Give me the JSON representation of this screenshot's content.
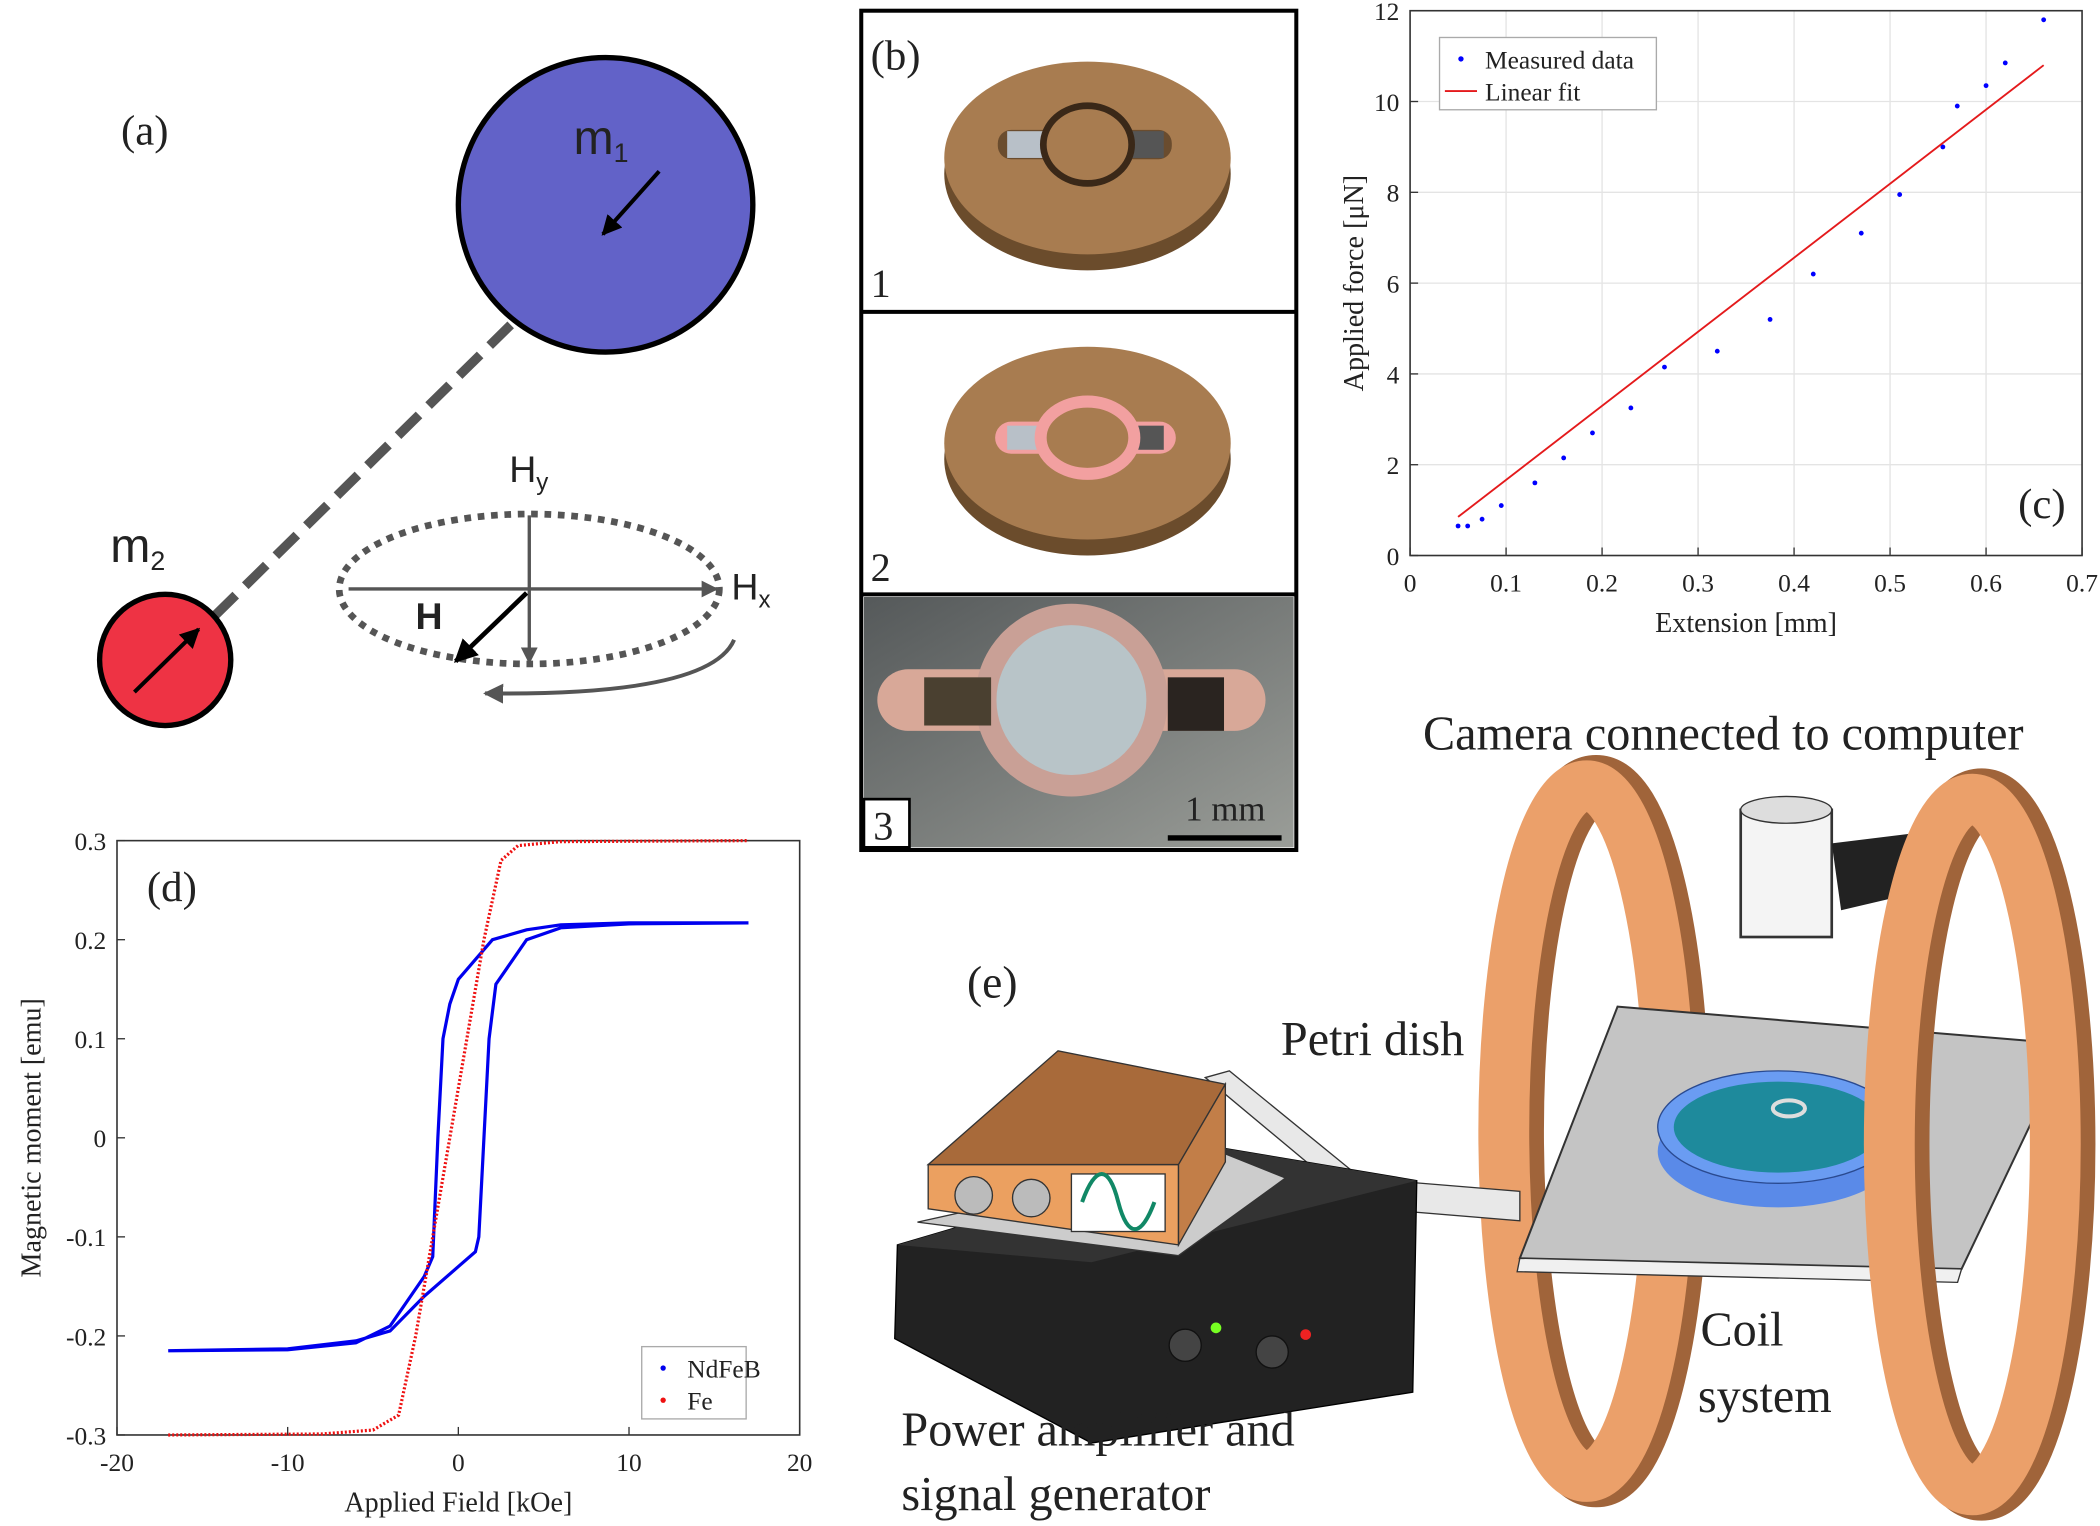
{
  "panel_a": {
    "label": "(a)",
    "m1": "m",
    "m1_sub": "1",
    "m2": "m",
    "m2_sub": "2",
    "hy": "H",
    "hy_sub": "y",
    "hx": "H",
    "hx_sub": "x",
    "h": "H"
  },
  "panel_b": {
    "label": "(b)",
    "steps": [
      "1",
      "2",
      "3"
    ],
    "scale": "1 mm"
  },
  "panel_e": {
    "label": "(e)",
    "camera": "Camera connected to computer",
    "dish": "Petri dish",
    "coil": [
      "Coil",
      "system"
    ],
    "amplifier": [
      "Power amplifier and",
      "signal generator"
    ]
  },
  "chart_data": [
    {
      "type": "scatter",
      "annotation": "(c)",
      "x_label": "Extension [mm]",
      "y_label": "Applied force [μN]",
      "xlim": [
        0,
        0.7
      ],
      "xticks": [
        0,
        0.1,
        0.2,
        0.3,
        0.4,
        0.5,
        0.6,
        0.7
      ],
      "ylim": [
        0,
        12
      ],
      "yticks": [
        0,
        2,
        4,
        6,
        8,
        10,
        12
      ],
      "grid": true,
      "legend": "top-left",
      "series": [
        {
          "name": "Measured data",
          "mode": "markers",
          "color": "#0000ff",
          "x": [
            0.05,
            0.06,
            0.075,
            0.095,
            0.13,
            0.16,
            0.19,
            0.23,
            0.265,
            0.32,
            0.375,
            0.42,
            0.47,
            0.51,
            0.555,
            0.57,
            0.6,
            0.62,
            0.66
          ],
          "values": [
            0.65,
            0.65,
            0.8,
            1.1,
            1.6,
            2.15,
            2.7,
            3.25,
            4.15,
            4.5,
            5.2,
            6.2,
            7.1,
            7.95,
            9.0,
            9.9,
            10.35,
            10.85,
            11.8
          ]
        },
        {
          "name": "Linear fit",
          "mode": "line",
          "color": "#e41a1c",
          "x": [
            0.05,
            0.66
          ],
          "values": [
            0.85,
            10.8
          ]
        }
      ]
    },
    {
      "type": "line",
      "annotation": "(d)",
      "x_label": "Applied Field [kOe]",
      "y_label": "Magnetic moment [emu]",
      "xlim": [
        -20,
        20
      ],
      "xticks": [
        -20,
        -10,
        0,
        10,
        20
      ],
      "ylim": [
        -0.3,
        0.3
      ],
      "yticks": [
        -0.3,
        -0.2,
        -0.1,
        0,
        0.1,
        0.2,
        0.3
      ],
      "grid": false,
      "legend": "bottom-right",
      "series": [
        {
          "name": "NdFeB",
          "color": "#0000ee",
          "x": [
            17,
            10,
            6,
            4,
            2,
            0,
            -0.5,
            -0.9,
            -1.2,
            -1.5,
            -2,
            -4,
            -6,
            -10,
            -17,
            -10,
            -6,
            -4,
            -2,
            0,
            1,
            1.2,
            1.5,
            1.8,
            2.2,
            4,
            6,
            10,
            17
          ],
          "values": [
            0.217,
            0.217,
            0.215,
            0.21,
            0.2,
            0.16,
            0.135,
            0.1,
            0,
            -0.12,
            -0.14,
            -0.19,
            -0.207,
            -0.214,
            -0.215,
            -0.213,
            -0.205,
            -0.195,
            -0.16,
            -0.13,
            -0.115,
            -0.1,
            0,
            0.1,
            0.155,
            0.2,
            0.212,
            0.216,
            0.217
          ]
        },
        {
          "name": "Fe",
          "color": "#ee1111",
          "x": [
            -17,
            -8,
            -5,
            -3.5,
            -2.5,
            -1.5,
            -0.5,
            0.5,
            1.5,
            2.5,
            3.5,
            6,
            17
          ],
          "values": [
            -0.3,
            -0.299,
            -0.295,
            -0.28,
            -0.2,
            -0.1,
            0,
            0.1,
            0.2,
            0.28,
            0.295,
            0.299,
            0.3
          ]
        }
      ]
    }
  ]
}
